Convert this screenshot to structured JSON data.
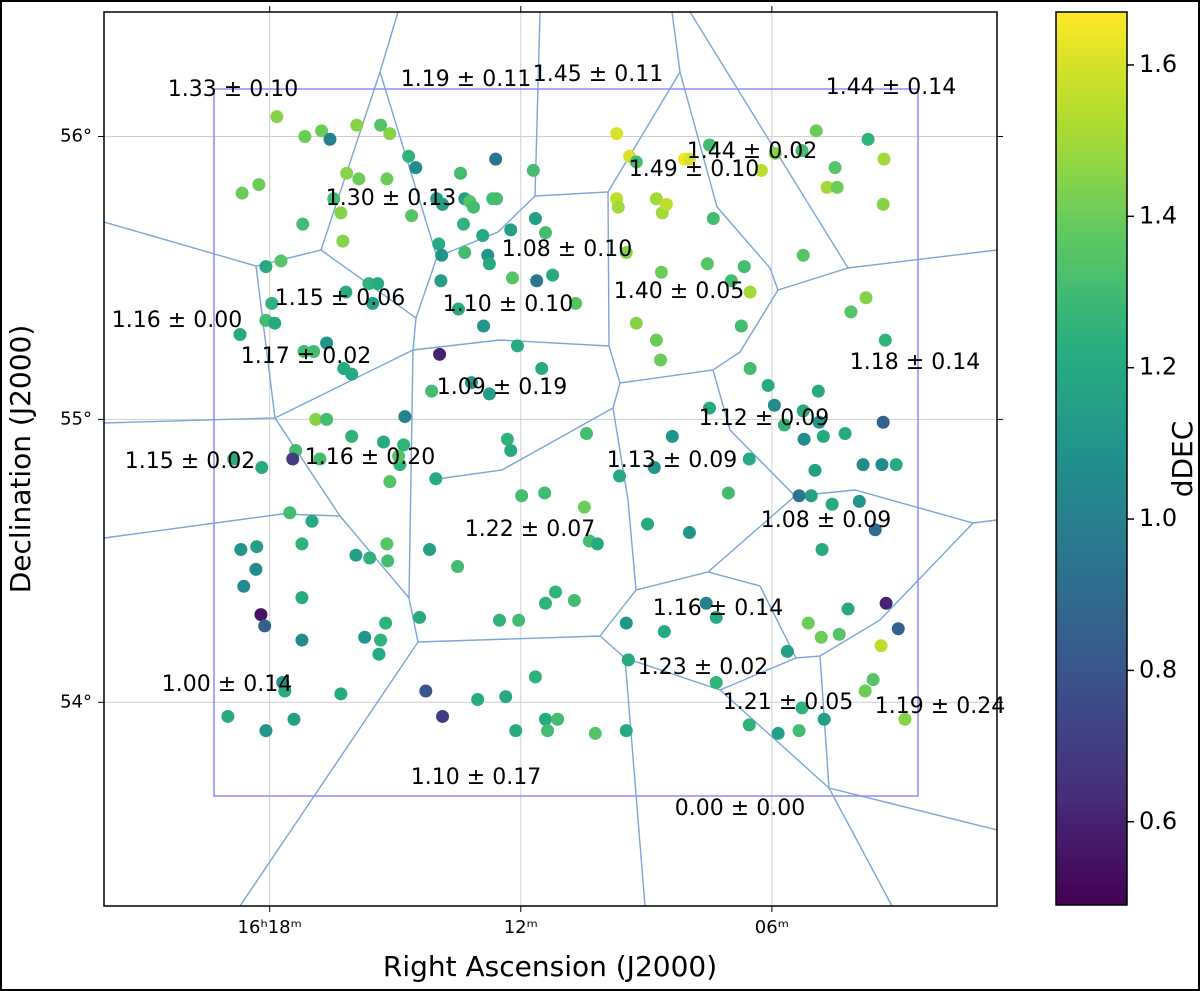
{
  "chart_data": {
    "type": "scatter",
    "x_label": "Right Ascension (J2000)",
    "y_label": "Declination (J2000)",
    "xlim": [
      21.96,
      0.62
    ],
    "ylim": [
      53.28,
      56.44
    ],
    "xticks": [
      {
        "value": 18,
        "label": "16ʰ18ᵐ"
      },
      {
        "value": 12,
        "label": "12ᵐ"
      },
      {
        "value": 6,
        "label": "06ᵐ"
      }
    ],
    "yticks": [
      {
        "value": 54,
        "label": "54°"
      },
      {
        "value": 55,
        "label": "55°"
      },
      {
        "value": 56,
        "label": "56°"
      }
    ],
    "grid": true,
    "colormap": "viridis",
    "colorbar": {
      "label": "dDEC",
      "lim": [
        0.49,
        1.67
      ],
      "ticks": [
        0.6,
        0.8,
        {
          "value": 1,
          "label": "1.0"
        },
        1.2,
        1.4,
        1.6
      ]
    },
    "annotations": [
      "1.33 ± 0.10",
      "1.19 ± 0.11",
      "1.45 ± 0.11",
      "1.44 ± 0.14",
      "1.44 ± 0.02",
      "1.49 ± 0.10",
      "1.30 ± 0.13",
      "1.08 ± 0.10",
      "1.15 ± 0.06",
      "1.10 ± 0.10",
      "1.40 ± 0.05",
      "1.16 ± 0.00",
      "1.17 ± 0.02",
      "1.18 ± 0.14",
      "1.09 ± 0.19",
      "1.12 ± 0.09",
      "1.15 ± 0.02",
      "1.16 ± 0.20",
      "1.13 ± 0.09",
      "1.08 ± 0.09",
      "1.22 ± 0.07",
      "1.16 ± 0.14",
      "1.23 ± 0.02",
      "1.00 ± 0.14",
      "1.21 ± 0.05",
      "1.19 ± 0.24",
      "1.10 ± 0.17",
      "0.00 ± 0.00"
    ],
    "x": [
      17.83,
      17.16,
      16.76,
      16.56,
      15.92,
      15.35,
      15.13,
      14.68,
      14.51,
      18.66,
      18.26,
      16.16,
      15.87,
      15.2,
      16.47,
      16.3,
      16.25,
      17.21,
      14.61,
      14.01,
      13.87,
      13.44,
      13.34,
      13.22,
      13.13,
      12.67,
      12.58,
      12.6,
      11.7,
      13.96,
      13.37,
      13.34,
      12.91,
      12.79,
      12.24,
      11.65,
      11.41,
      12.75,
      12.2,
      11.62,
      11.24,
      10.69,
      9.71,
      9.4,
      9.24,
      9.71,
      9.67,
      8.76,
      8.62,
      8.52,
      9.48,
      8.64,
      9.24,
      8.76,
      8.66,
      8.09,
      7.97,
      7.49,
      7.4,
      7.54,
      6.66,
      6.97,
      6.52,
      6.73,
      6.25,
      5.92,
      4.94,
      5.28,
      4.68,
      4.44,
      4.49,
      3.7,
      3.32,
      3.34,
      5.25,
      4.11,
      3.75,
      3.29,
      18.71,
      18.09,
      17.95,
      18.09,
      17.88,
      17.73,
      17.18,
      16.95,
      16.64,
      16.23,
      16.04,
      16.18,
      15.63,
      15.42,
      15.54,
      13.94,
      13.89,
      13.91,
      13.49,
      12.89,
      12.08,
      11.5,
      13.18,
      12.75,
      14.77,
      14.13,
      16.9,
      16.64,
      16.04,
      15.28,
      14.8,
      15.13,
      14.89,
      14.92,
      14.03,
      17.38,
      17.45,
      16.8,
      18.86,
      18.19,
      17.52,
      16.99,
      15.94,
      15.61,
      15.2,
      15.18,
      14.18,
      13.51,
      12.32,
      12.24,
      11.98,
      11.43,
      10.43,
      10.48,
      10.36,
      10.17,
      9.64,
      8.97,
      8.81,
      8.38,
      7.97,
      7.49,
      7.04,
      6.54,
      6.52,
      6.09,
      5.94,
      5.7,
      5.25,
      4.89,
      4.87,
      5.23,
      4.77,
      4.25,
      4.97,
      5.35,
      5.06,
      4.56,
      3.91,
      3.82,
      3.34,
      3.37,
      3.03,
      3.53,
      4.8,
      18.69,
      18.31,
      18.62,
      18.33,
      17.23,
      17.23,
      18.21,
      18.12,
      17.23,
      15.73,
      15.39,
      15.35,
      15.23,
      14.42,
      11.17,
      11.41,
      10.72,
      12.51,
      12.05,
      9.48,
      8.57,
      7.57,
      7.33,
      5.63,
      5.13,
      4.82,
      4.39,
      4.18,
      3.27,
      2.98,
      3.39,
      3.58,
      3.77,
      2.82,
      19.0,
      18.09,
      17.42,
      17.69,
      17.64,
      16.3,
      14.27,
      13.87,
      13.03,
      12.36,
      12.12,
      11.65,
      11.41,
      11.36,
      11.12,
      10.22,
      9.48,
      9.43,
      7.33,
      6.54,
      5.85,
      5.35,
      5.28,
      4.75
    ],
    "y": [
      56.07,
      56.0,
      56.02,
      55.99,
      56.04,
      56.04,
      56.01,
      55.93,
      55.89,
      55.8,
      55.83,
      55.87,
      55.85,
      55.85,
      55.78,
      55.73,
      55.63,
      55.69,
      55.72,
      55.78,
      55.76,
      55.87,
      55.78,
      55.77,
      55.75,
      55.78,
      55.78,
      55.92,
      55.88,
      55.62,
      55.69,
      55.59,
      55.65,
      55.58,
      55.67,
      55.71,
      55.66,
      55.55,
      55.5,
      55.49,
      55.51,
      55.41,
      56.01,
      55.93,
      55.91,
      55.78,
      55.75,
      55.78,
      55.73,
      55.76,
      55.59,
      55.52,
      55.34,
      55.28,
      55.21,
      55.92,
      55.92,
      55.97,
      55.71,
      55.55,
      55.54,
      55.49,
      55.45,
      55.33,
      55.88,
      55.94,
      56.02,
      55.95,
      55.82,
      55.82,
      55.89,
      55.99,
      55.92,
      55.76,
      55.58,
      55.38,
      55.43,
      55.28,
      55.3,
      55.54,
      55.41,
      55.35,
      55.34,
      55.56,
      55.24,
      55.24,
      55.27,
      55.18,
      55.16,
      55.45,
      55.48,
      55.48,
      55.41,
      55.23,
      55.58,
      55.49,
      55.39,
      55.33,
      55.26,
      55.18,
      55.13,
      55.09,
      55.01,
      55.1,
      55.0,
      55.0,
      54.94,
      54.92,
      54.91,
      54.78,
      54.84,
      54.87,
      54.79,
      54.89,
      54.86,
      54.86,
      54.86,
      54.83,
      54.67,
      54.64,
      54.52,
      54.51,
      54.56,
      54.5,
      54.54,
      54.48,
      54.93,
      54.89,
      54.73,
      54.74,
      54.95,
      54.69,
      54.57,
      54.56,
      54.8,
      54.63,
      54.83,
      54.94,
      54.6,
      55.04,
      54.74,
      54.86,
      55.18,
      55.12,
      55.05,
      54.98,
      55.03,
      55.1,
      54.99,
      54.93,
      54.94,
      54.95,
      54.82,
      54.73,
      54.73,
      54.7,
      54.71,
      54.84,
      54.99,
      54.84,
      54.84,
      54.61,
      54.54,
      54.54,
      54.55,
      54.41,
      54.47,
      54.56,
      54.37,
      54.31,
      54.27,
      54.22,
      54.23,
      54.17,
      54.22,
      54.28,
      54.3,
      54.39,
      54.35,
      54.36,
      54.29,
      54.29,
      54.28,
      54.25,
      54.35,
      54.3,
      54.18,
      54.28,
      54.23,
      54.24,
      54.33,
      54.35,
      54.26,
      54.2,
      54.08,
      54.04,
      53.94,
      53.95,
      53.9,
      53.94,
      54.07,
      54.04,
      54.03,
      54.04,
      53.95,
      54.01,
      54.02,
      53.9,
      54.09,
      53.94,
      53.9,
      53.94,
      53.89,
      53.9,
      54.15,
      54.07,
      53.92,
      53.89,
      53.9,
      53.98,
      53.94
    ],
    "values": [
      1.45,
      1.4,
      1.4,
      1.0,
      1.45,
      1.35,
      1.45,
      1.25,
      1.05,
      1.4,
      1.4,
      1.45,
      1.4,
      1.4,
      1.3,
      1.45,
      1.45,
      1.3,
      1.35,
      1.15,
      1.15,
      1.3,
      1.15,
      1.35,
      1.3,
      1.3,
      1.3,
      0.95,
      1.3,
      1.2,
      1.25,
      1.3,
      1.2,
      1.1,
      1.15,
      1.15,
      1.3,
      1.2,
      1.35,
      0.95,
      1.2,
      1.35,
      1.6,
      1.6,
      1.3,
      1.55,
      1.5,
      1.5,
      1.5,
      1.55,
      1.45,
      1.4,
      1.45,
      1.4,
      1.4,
      1.65,
      1.6,
      1.3,
      1.3,
      1.35,
      1.3,
      1.3,
      1.5,
      1.3,
      1.55,
      1.45,
      1.4,
      1.3,
      1.5,
      1.4,
      1.35,
      1.25,
      1.5,
      1.45,
      1.35,
      1.35,
      1.45,
      1.25,
      1.2,
      1.2,
      1.25,
      1.3,
      1.2,
      1.35,
      1.3,
      1.3,
      1.1,
      1.2,
      1.2,
      1.2,
      1.25,
      1.2,
      1.15,
      0.6,
      1.1,
      1.15,
      1.2,
      1.1,
      1.2,
      1.2,
      1.1,
      1.15,
      1.0,
      1.3,
      1.45,
      1.3,
      1.25,
      1.2,
      1.25,
      1.35,
      1.25,
      1.35,
      1.2,
      1.3,
      0.7,
      1.3,
      1.2,
      1.2,
      1.3,
      1.2,
      1.15,
      1.25,
      1.35,
      1.3,
      1.15,
      1.3,
      1.25,
      1.2,
      1.3,
      1.3,
      1.3,
      1.4,
      1.3,
      1.2,
      1.2,
      1.2,
      1.1,
      1.1,
      1.1,
      1.2,
      1.3,
      1.2,
      1.3,
      1.2,
      1.05,
      1.25,
      1.2,
      1.2,
      1.1,
      1.05,
      1.2,
      1.2,
      1.15,
      0.95,
      1.15,
      1.2,
      1.1,
      1.05,
      0.85,
      1.05,
      1.2,
      0.9,
      1.2,
      1.1,
      1.15,
      1.05,
      1.05,
      1.25,
      1.2,
      0.55,
      0.85,
      1.05,
      1.1,
      1.2,
      1.25,
      1.25,
      1.2,
      1.25,
      1.25,
      1.3,
      1.25,
      1.3,
      1.1,
      1.2,
      1.0,
      1.2,
      1.15,
      1.4,
      1.4,
      1.35,
      1.2,
      0.6,
      0.85,
      1.55,
      1.35,
      1.4,
      1.45,
      1.2,
      1.1,
      1.15,
      1.1,
      1.2,
      1.2,
      0.8,
      0.7,
      1.2,
      1.2,
      1.2,
      1.25,
      1.2,
      1.3,
      1.3,
      1.35,
      1.2,
      1.2,
      1.25,
      1.25,
      1.15,
      1.3,
      1.25,
      1.15
    ]
  }
}
